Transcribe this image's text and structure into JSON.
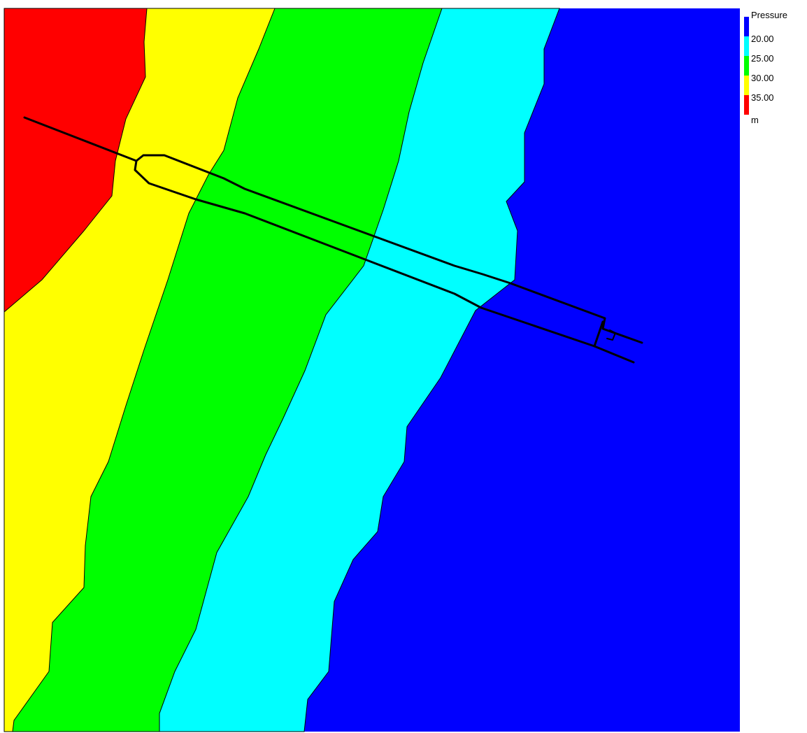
{
  "legend": {
    "title": "Pressure",
    "unit": "m",
    "bands": [
      {
        "label": "20.00",
        "color": "#0000ff"
      },
      {
        "label": "25.00",
        "color": "#00ffff"
      },
      {
        "label": "30.00",
        "color": "#00ff00"
      },
      {
        "label": "35.00",
        "color": "#ffff00"
      },
      {
        "label": "",
        "color": "#ff0000"
      }
    ]
  },
  "colors": {
    "below_20": "#0000ff",
    "20_to_25": "#00ffff",
    "25_to_30": "#00ff00",
    "30_to_35": "#ffff00",
    "above_35": "#ff0000",
    "network_line": "#000000"
  }
}
